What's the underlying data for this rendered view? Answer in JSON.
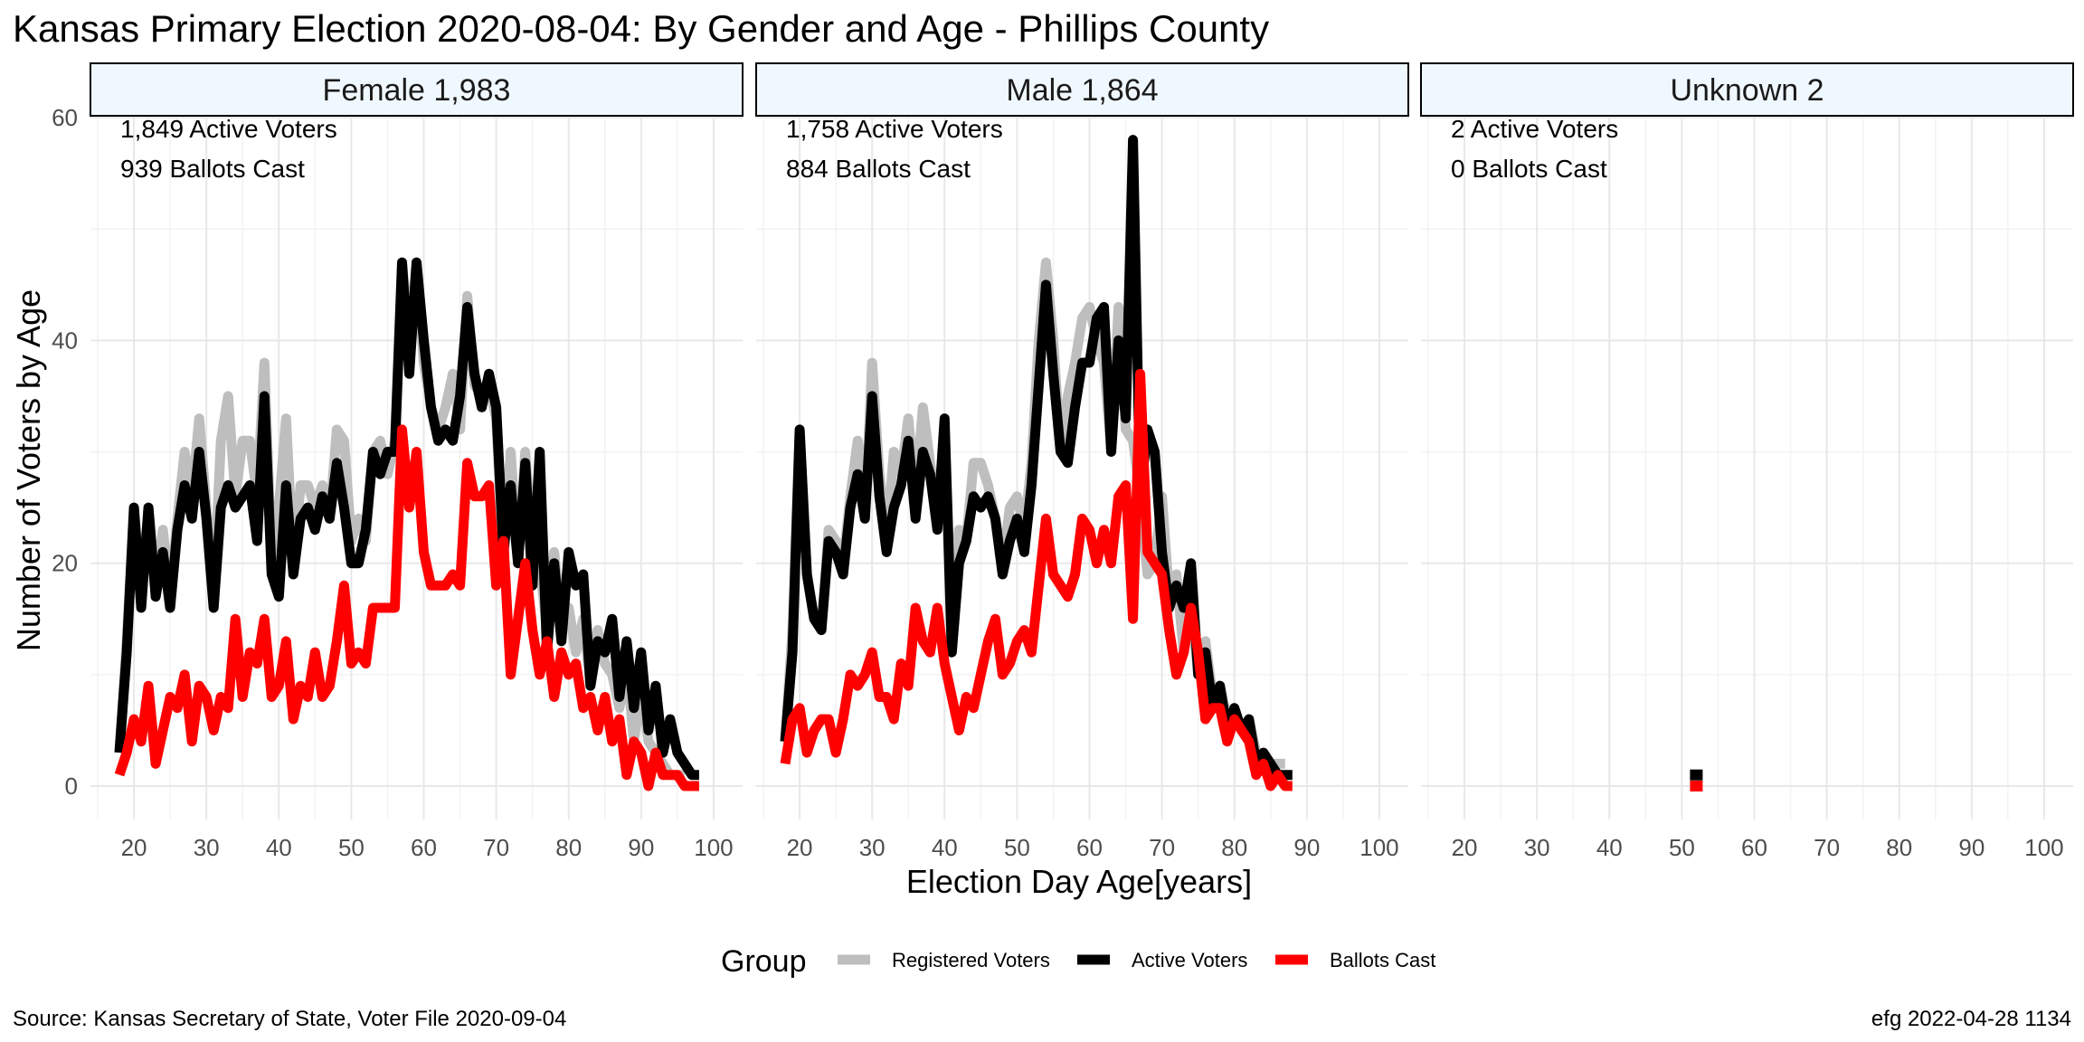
{
  "chart_data": {
    "type": "line",
    "title": "Kansas Primary Election 2020-08-04:  By Gender and Age - Phillips County",
    "xlabel": "Election Day Age[years]",
    "ylabel": "Number of Voters by Age",
    "xlim": [
      14,
      104
    ],
    "ylim": [
      -3,
      60
    ],
    "x_ticks": [
      20,
      30,
      40,
      50,
      60,
      70,
      80,
      90,
      100
    ],
    "y_ticks": [
      0,
      20,
      40,
      60
    ],
    "grid": true,
    "legend": {
      "title": "Group",
      "position": "bottom",
      "items": [
        {
          "label": "Registered Voters",
          "color": "#bebebe"
        },
        {
          "label": "Active Voters",
          "color": "#000000"
        },
        {
          "label": "Ballots Cast",
          "color": "#ff0000"
        }
      ]
    },
    "source": "Source:  Kansas Secretary of State, Voter File  2020-09-04",
    "credit": "efg 2022-04-28 1134",
    "panels": [
      {
        "label": "Female 1,983",
        "active_label": "1,849 Active Voters",
        "ballots_label": "939 Ballots Cast",
        "series": [
          {
            "name": "Registered Voters",
            "x_start": 18,
            "values": [
              3,
              13,
              25,
              17,
              25,
              18,
              23,
              17,
              24,
              30,
              26,
              33,
              25,
              17,
              31,
              35,
              26,
              31,
              31,
              26,
              38,
              20,
              25,
              33,
              20,
              27,
              27,
              25,
              27,
              24,
              32,
              31,
              22,
              24,
              22,
              30,
              31,
              28,
              31,
              47,
              40,
              47,
              38,
              34,
              32,
              34,
              37,
              32,
              44,
              36,
              35,
              36,
              33,
              20,
              30,
              20,
              30,
              21,
              20,
              14,
              21,
              14,
              16,
              12,
              15,
              9,
              14,
              11,
              10,
              7,
              11,
              4,
              9,
              4,
              3,
              2,
              1,
              1,
              1
            ]
          },
          {
            "name": "Active Voters",
            "x_start": 18,
            "values": [
              3,
              12,
              25,
              16,
              25,
              17,
              21,
              16,
              23,
              27,
              24,
              30,
              24,
              16,
              25,
              27,
              25,
              26,
              27,
              22,
              35,
              19,
              17,
              27,
              19,
              24,
              25,
              23,
              26,
              24,
              29,
              25,
              20,
              20,
              23,
              30,
              28,
              30,
              30,
              47,
              37,
              47,
              40,
              34,
              31,
              32,
              31,
              35,
              43,
              37,
              34,
              37,
              34,
              21,
              27,
              20,
              29,
              18,
              30,
              12,
              20,
              13,
              21,
              18,
              19,
              9,
              13,
              12,
              15,
              8,
              13,
              7,
              12,
              5,
              9,
              3,
              6,
              3,
              2,
              1,
              1
            ]
          },
          {
            "name": "Ballots Cast",
            "x_start": 18,
            "values": [
              1,
              3,
              6,
              4,
              9,
              2,
              5,
              8,
              7,
              10,
              4,
              9,
              8,
              5,
              8,
              7,
              15,
              8,
              12,
              11,
              15,
              8,
              9,
              13,
              6,
              9,
              8,
              12,
              8,
              9,
              13,
              18,
              11,
              12,
              11,
              16,
              16,
              16,
              16,
              32,
              25,
              30,
              21,
              18,
              18,
              18,
              19,
              18,
              29,
              26,
              26,
              27,
              18,
              22,
              10,
              15,
              20,
              14,
              10,
              13,
              8,
              12,
              10,
              11,
              7,
              8,
              5,
              8,
              4,
              6,
              1,
              4,
              3,
              0,
              3,
              1,
              1,
              1,
              0,
              0,
              0
            ]
          }
        ]
      },
      {
        "label": "Male 1,864",
        "active_label": "1,758 Active Voters",
        "ballots_label": "884 Ballots Cast",
        "series": [
          {
            "name": "Registered Voters",
            "x_start": 18,
            "values": [
              4,
              14,
              32,
              19,
              15,
              14,
              23,
              22,
              20,
              26,
              31,
              24,
              38,
              28,
              22,
              30,
              28,
              33,
              26,
              34,
              29,
              24,
              32,
              15,
              23,
              22,
              29,
              29,
              27,
              24,
              20,
              25,
              26,
              23,
              29,
              40,
              47,
              40,
              30,
              35,
              38,
              42,
              43,
              40,
              38,
              30,
              43,
              32,
              31,
              26,
              19,
              20,
              26,
              17,
              19,
              12,
              16,
              10,
              13,
              8,
              9,
              6,
              7,
              5,
              6,
              3,
              2,
              2,
              2,
              2
            ]
          },
          {
            "name": "Active Voters",
            "x_start": 18,
            "values": [
              4,
              12,
              32,
              19,
              15,
              14,
              22,
              21,
              19,
              25,
              28,
              24,
              35,
              26,
              21,
              25,
              27,
              31,
              24,
              30,
              28,
              23,
              33,
              12,
              20,
              22,
              26,
              25,
              26,
              24,
              19,
              22,
              24,
              21,
              27,
              36,
              45,
              37,
              30,
              29,
              34,
              38,
              38,
              42,
              43,
              30,
              40,
              33,
              58,
              26,
              32,
              30,
              21,
              16,
              18,
              16,
              20,
              10,
              12,
              7,
              9,
              5,
              7,
              5,
              6,
              2,
              3,
              2,
              1,
              1,
              1
            ]
          },
          {
            "name": "Ballots Cast",
            "x_start": 18,
            "values": [
              2,
              6,
              7,
              3,
              5,
              6,
              6,
              3,
              6,
              10,
              9,
              10,
              12,
              8,
              8,
              6,
              11,
              9,
              16,
              13,
              12,
              16,
              11,
              8,
              5,
              8,
              7,
              10,
              13,
              15,
              10,
              11,
              13,
              14,
              12,
              18,
              24,
              19,
              18,
              17,
              19,
              24,
              23,
              20,
              23,
              20,
              26,
              27,
              15,
              37,
              21,
              20,
              19,
              14,
              10,
              12,
              16,
              12,
              6,
              7,
              7,
              4,
              6,
              5,
              4,
              1,
              2,
              0,
              1,
              0,
              0
            ]
          }
        ]
      },
      {
        "label": "Unknown 2",
        "active_label": "2 Active Voters",
        "ballots_label": "0 Ballots Cast",
        "series": [
          {
            "name": "Registered Voters",
            "x_start": 52,
            "values": [
              1
            ]
          },
          {
            "name": "Active Voters",
            "x_start": 52,
            "values": [
              1
            ]
          },
          {
            "name": "Ballots Cast",
            "x_start": 52,
            "values": [
              0
            ]
          }
        ]
      }
    ]
  }
}
